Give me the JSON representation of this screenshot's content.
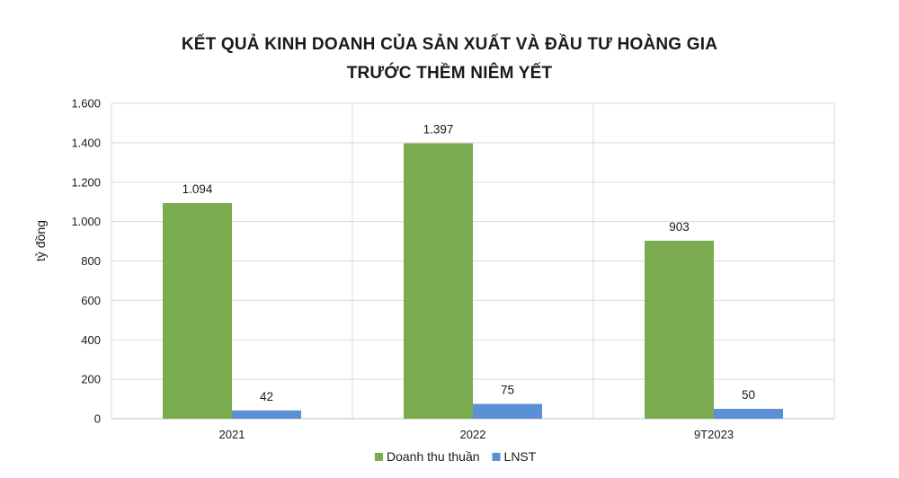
{
  "chart_data": {
    "type": "bar",
    "title_lines": [
      "KẾT QUẢ KINH DOANH CỦA SẢN XUẤT VÀ ĐẦU TƯ HOÀNG GIA",
      "TRƯỚC THỀM NIÊM YẾT"
    ],
    "ylabel": "tỷ đồng",
    "xlabel": "",
    "categories": [
      "2021",
      "2022",
      "9T2023"
    ],
    "series": [
      {
        "name": "Doanh thu thuần",
        "values": [
          1094,
          1397,
          903
        ],
        "labels": [
          "1.094",
          "1.397",
          "903"
        ],
        "color": "#7aab4f"
      },
      {
        "name": "LNST",
        "values": [
          42,
          75,
          50
        ],
        "labels": [
          "42",
          "75",
          "50"
        ],
        "color": "#5b8fd6"
      }
    ],
    "ylim": [
      0,
      1600
    ],
    "yticks": [
      0,
      200,
      400,
      600,
      800,
      1000,
      1200,
      1400,
      1600
    ],
    "ytick_labels": [
      "0",
      "200",
      "400",
      "600",
      "800",
      "1.000",
      "1.200",
      "1.400",
      "1.600"
    ],
    "grid": true,
    "legend_position": "bottom"
  }
}
